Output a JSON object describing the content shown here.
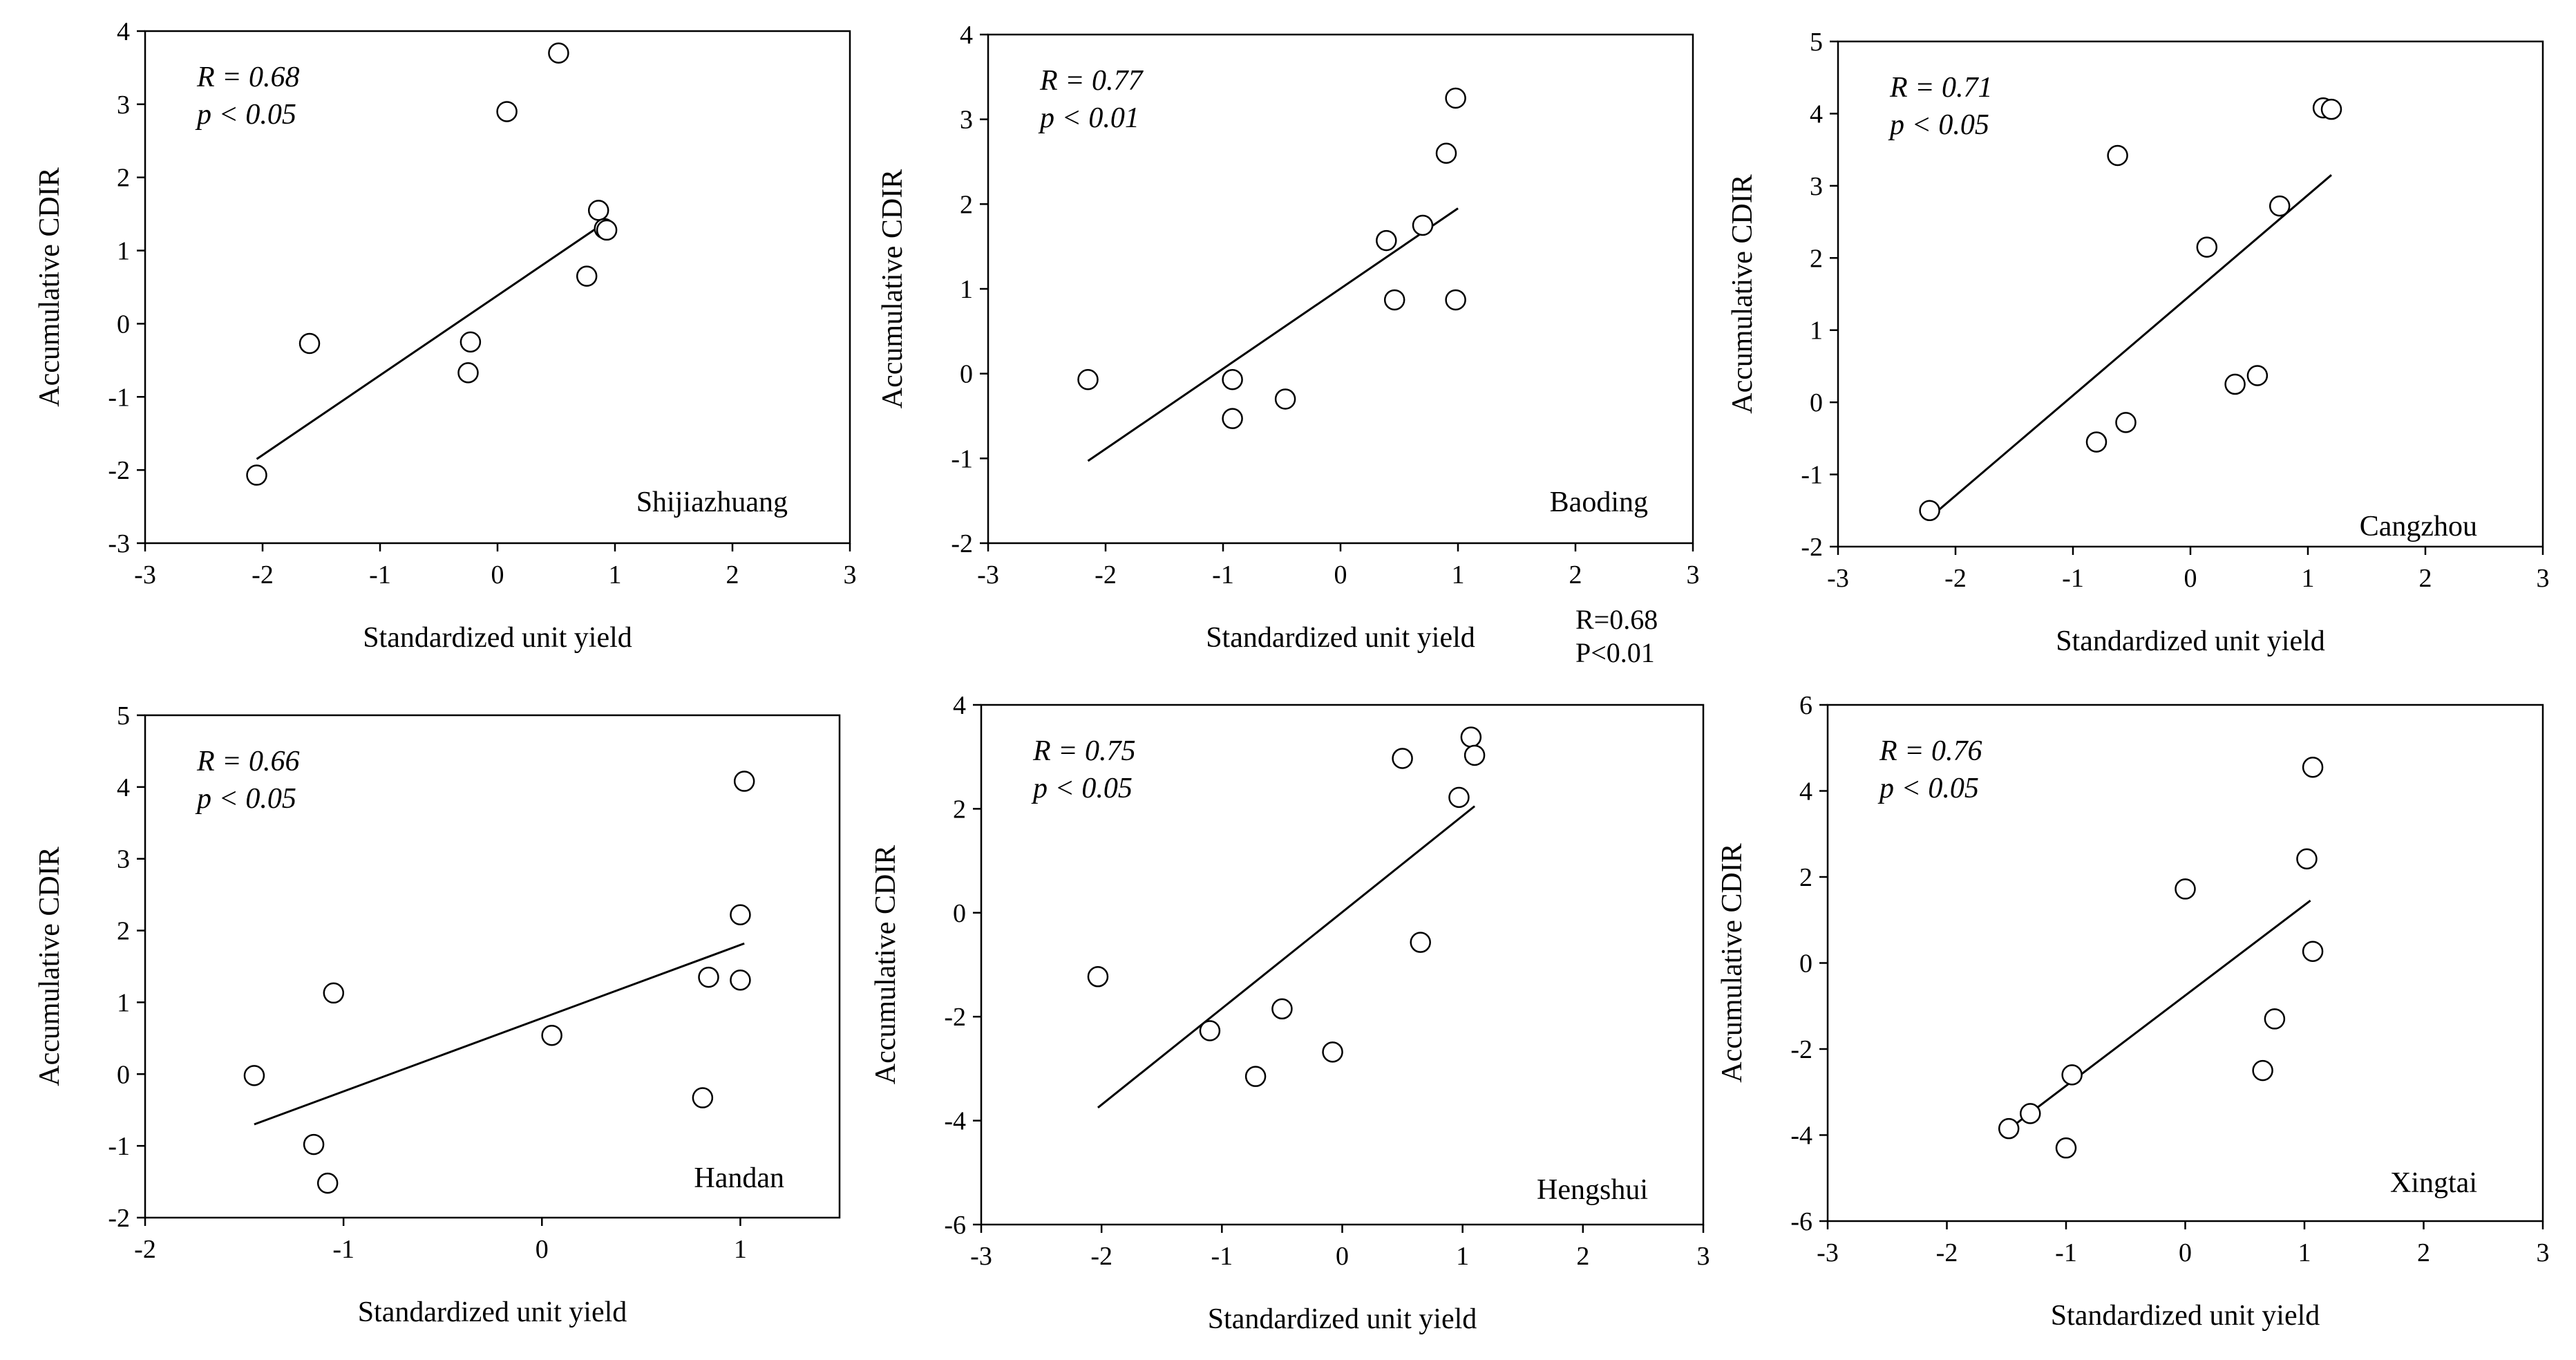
{
  "chart_data": [
    {
      "type": "scatter",
      "city": "Shijiazhuang",
      "xlabel": "Standardized unit yield",
      "ylabel": "Accumulative CDIR",
      "xlim": [
        -3,
        3
      ],
      "ylim": [
        -3,
        4
      ],
      "xticks": [
        "-3",
        "-2",
        "-1",
        "0",
        "1",
        "2",
        "3"
      ],
      "yticks": [
        "-3",
        "-2",
        "-1",
        "0",
        "1",
        "2",
        "3",
        "4"
      ],
      "r_text": "R = 0.68",
      "p_text": "p < 0.05",
      "x": [
        -2.05,
        -1.6,
        -0.25,
        -0.23,
        0.08,
        0.52,
        0.76,
        0.86,
        0.91,
        0.93
      ],
      "y": [
        -2.07,
        -0.27,
        -0.67,
        -0.25,
        2.9,
        3.7,
        0.65,
        1.55,
        1.3,
        1.28
      ],
      "fit": [
        [
          -2.05,
          -1.85
        ],
        [
          0.93,
          1.4
        ]
      ]
    },
    {
      "type": "scatter",
      "city": "Baoding",
      "xlabel": "Standardized unit yield",
      "ylabel": "Accumulative CDIR",
      "xlim": [
        -3,
        3
      ],
      "ylim": [
        -2,
        4
      ],
      "xticks": [
        "-3",
        "-2",
        "-1",
        "0",
        "1",
        "2",
        "3"
      ],
      "yticks": [
        "-2",
        "-1",
        "0",
        "1",
        "2",
        "3",
        "4"
      ],
      "r_text": "R = 0.77",
      "p_text": "p < 0.01",
      "x": [
        -2.15,
        -0.92,
        -0.92,
        -0.47,
        0.39,
        0.46,
        0.7,
        0.9,
        0.98,
        0.98
      ],
      "y": [
        -0.07,
        -0.07,
        -0.53,
        -0.3,
        1.57,
        0.87,
        1.75,
        2.6,
        3.25,
        0.87
      ],
      "fit": [
        [
          -2.15,
          -1.03
        ],
        [
          1.0,
          1.95
        ]
      ]
    },
    {
      "type": "scatter",
      "city": "Cangzhou",
      "xlabel": "Standardized unit yield",
      "ylabel": "Accumulative CDIR",
      "xlim": [
        -3,
        3
      ],
      "ylim": [
        -2,
        5
      ],
      "xticks": [
        "-3",
        "-2",
        "-1",
        "0",
        "1",
        "2",
        "3"
      ],
      "yticks": [
        "-2",
        "-1",
        "0",
        "1",
        "2",
        "3",
        "4",
        "5"
      ],
      "r_text": "R = 0.71",
      "p_text": "p < 0.05",
      "x": [
        -2.22,
        -0.8,
        -0.62,
        -0.55,
        0.14,
        0.38,
        0.57,
        0.76,
        1.13,
        1.2
      ],
      "y": [
        -1.5,
        -0.55,
        3.42,
        -0.28,
        2.15,
        0.25,
        0.37,
        2.72,
        4.08,
        4.06
      ],
      "fit": [
        [
          -2.22,
          -1.6
        ],
        [
          1.2,
          3.15
        ]
      ]
    },
    {
      "type": "scatter",
      "city": "Handan",
      "xlabel": "Standardized unit yield",
      "ylabel": "Accumulative CDIR",
      "xlim": [
        -2,
        1.5
      ],
      "ylim": [
        -2,
        5
      ],
      "xticks": [
        "-2",
        "-1",
        "0",
        "1"
      ],
      "yticks": [
        "-2",
        "-1",
        "0",
        "1",
        "2",
        "3",
        "4",
        "5"
      ],
      "r_text": "R = 0.66",
      "p_text": "p < 0.05",
      "x": [
        -1.45,
        -1.15,
        -1.08,
        -1.05,
        0.05,
        0.81,
        0.84,
        1.0,
        1.0,
        1.02
      ],
      "y": [
        -0.02,
        -0.98,
        -1.52,
        1.13,
        0.54,
        -0.33,
        1.35,
        1.31,
        2.22,
        4.08
      ],
      "fit": [
        [
          -1.45,
          -0.7
        ],
        [
          1.02,
          1.82
        ]
      ]
    },
    {
      "type": "scatter",
      "city": "Hengshui",
      "xlabel": "Standardized unit yield",
      "ylabel": "Accumulative CDIR",
      "xlim": [
        -3,
        3
      ],
      "ylim": [
        -6,
        4
      ],
      "xticks": [
        "-3",
        "-2",
        "-1",
        "0",
        "1",
        "2",
        "3"
      ],
      "yticks": [
        "-6",
        "-4",
        "-2",
        "0",
        "2",
        "4"
      ],
      "r_text": "R = 0.75",
      "p_text": "p < 0.05",
      "x": [
        -2.03,
        -1.1,
        -0.72,
        -0.5,
        -0.08,
        0.5,
        0.65,
        0.97,
        1.07,
        1.1
      ],
      "y": [
        -1.23,
        -2.27,
        -3.15,
        -1.85,
        -2.68,
        2.97,
        -0.57,
        2.22,
        3.38,
        3.03
      ],
      "fit": [
        [
          -2.03,
          -3.75
        ],
        [
          1.1,
          2.05
        ]
      ]
    },
    {
      "type": "scatter",
      "city": "Xingtai",
      "xlabel": "Standardized unit yield",
      "ylabel": "Accumulative CDIR",
      "xlim": [
        -3,
        3
      ],
      "ylim": [
        -6,
        6
      ],
      "xticks": [
        "-3",
        "-2",
        "-1",
        "0",
        "1",
        "2",
        "3"
      ],
      "yticks": [
        "-6",
        "-4",
        "-2",
        "0",
        "2",
        "4",
        "6"
      ],
      "r_text": "R = 0.76",
      "p_text": "p < 0.05",
      "x": [
        -1.48,
        -1.3,
        -1.0,
        -0.95,
        0.0,
        0.65,
        0.75,
        1.02,
        1.07,
        1.07
      ],
      "y": [
        -3.85,
        -3.5,
        -4.3,
        -2.6,
        1.72,
        -2.5,
        -1.3,
        2.42,
        4.55,
        0.27
      ],
      "fit": [
        [
          -1.45,
          -3.8
        ],
        [
          1.05,
          1.45
        ]
      ]
    }
  ],
  "annotation": {
    "line1": "R=0.68",
    "line2": "P<0.01"
  }
}
